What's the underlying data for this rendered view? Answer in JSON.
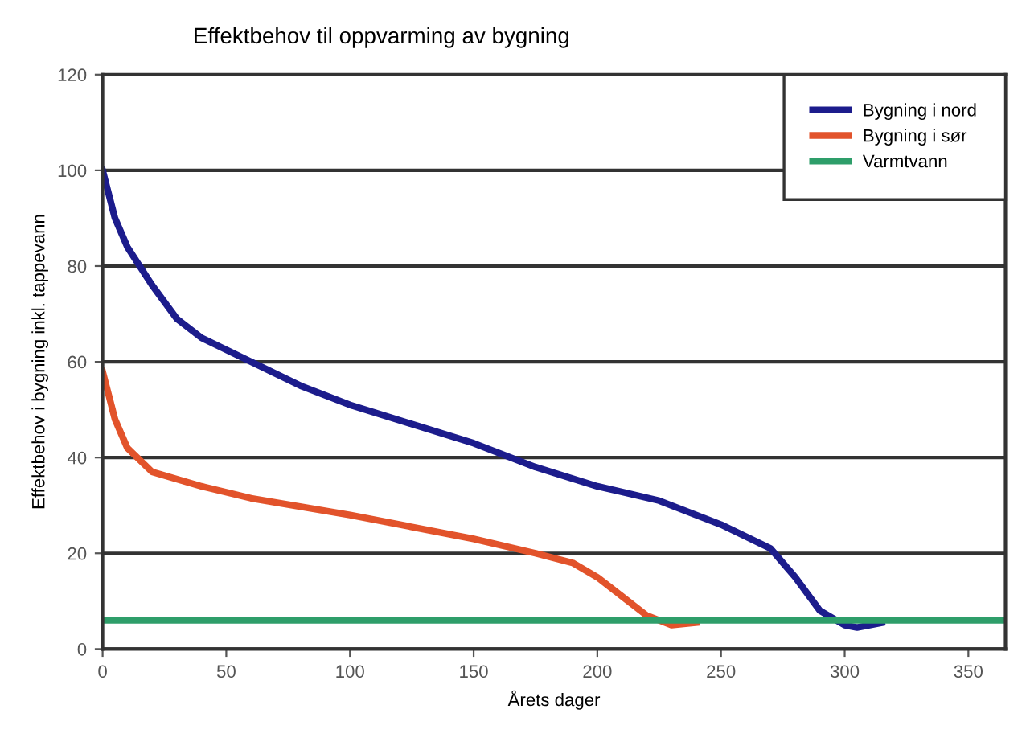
{
  "chart_data": {
    "type": "line",
    "title": "Effektbehov til oppvarming av bygning",
    "xlabel": "Årets dager",
    "ylabel": "Effektbehov i bygning inkl. tappevann",
    "xlim": [
      0,
      365
    ],
    "xticks": [
      0,
      50,
      100,
      150,
      200,
      250,
      300,
      350
    ],
    "ylim": [
      0,
      120
    ],
    "yticks": [
      0,
      20,
      40,
      60,
      80,
      100,
      120
    ],
    "grid": "y",
    "legend": "top right",
    "marker": "none",
    "line_style": "solid",
    "series": [
      {
        "name": "Bygning i nord",
        "color": "#1c1c8c",
        "x": [
          0,
          5,
          10,
          20,
          30,
          40,
          60,
          80,
          100,
          125,
          150,
          175,
          200,
          225,
          250,
          270,
          280,
          290,
          300,
          305,
          315
        ],
        "values": [
          100,
          90,
          84,
          76,
          69,
          65,
          60,
          55,
          51,
          47,
          43,
          38,
          34,
          31,
          26,
          21,
          15,
          8,
          5,
          4.5,
          5.5
        ]
      },
      {
        "name": "Bygning i sør",
        "color": "#e2532b",
        "x": [
          0,
          5,
          10,
          20,
          40,
          60,
          100,
          150,
          175,
          190,
          200,
          210,
          220,
          230,
          240
        ],
        "values": [
          58,
          48,
          42,
          37,
          34,
          31.5,
          28,
          23,
          20,
          18,
          15,
          11,
          7,
          5,
          5.5
        ]
      },
      {
        "name": "Varmtvann",
        "color": "#2e9e6a",
        "x": [
          0,
          365
        ],
        "values": [
          6,
          6
        ]
      }
    ]
  }
}
